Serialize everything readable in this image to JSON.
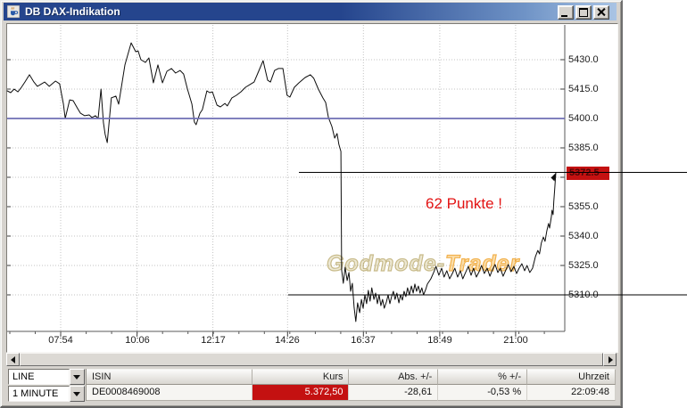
{
  "window": {
    "title": "DB DAX-Indikation",
    "controls": {
      "minimize": "minimize",
      "maximize": "maximize",
      "close": "close"
    }
  },
  "chart": {
    "annotation": "62 Punkte !",
    "watermark": {
      "part1": "Godmode-",
      "part2": "Trader"
    },
    "last_price_box": "5372.5"
  },
  "chart_data": {
    "type": "line",
    "title": "DB DAX-Indikation",
    "xlabel": "Uhrzeit",
    "ylabel": "Kurs",
    "x_ticks": [
      "07:54",
      "10:06",
      "12:17",
      "14:26",
      "16:37",
      "18:49",
      "21:00"
    ],
    "x_ticks_hours": [
      7.9,
      10.1,
      12.283,
      14.433,
      16.617,
      18.817,
      21.0
    ],
    "y_ticks": [
      5430,
      5415,
      5400,
      5385,
      5370,
      5355,
      5340,
      5325,
      5310
    ],
    "y_tick_labels": [
      "5430.0",
      "5415.0",
      "5400.0",
      "5385.0",
      "5370.0",
      "5355.0",
      "5340.0",
      "5325.0",
      "5310.0"
    ],
    "xlim_hours": [
      6.358,
      22.42
    ],
    "ylim": [
      5293,
      5447
    ],
    "grid": true,
    "last_price": 5372.5,
    "session_low": 5296.4,
    "session_high": 5438.6,
    "hlines": [
      {
        "value": 5400.0,
        "color": "#6f6fb4",
        "style": "solid",
        "x_start_hours": 6.358,
        "extend_to": "axis"
      },
      {
        "value": 5372.5,
        "color": "#000000",
        "style": "solid",
        "x_start_hours": 14.76,
        "extend_to": "image_edge"
      },
      {
        "value": 5310.0,
        "color": "#000000",
        "style": "solid",
        "x_start_hours": 14.45,
        "extend_to": "image_edge"
      }
    ],
    "series": [
      {
        "name": "DB DAX-Indikation 1 MINUTE",
        "points": [
          [
            6.36,
            5414.1
          ],
          [
            6.46,
            5413.2
          ],
          [
            6.56,
            5415.0
          ],
          [
            6.67,
            5413.6
          ],
          [
            6.77,
            5415.9
          ],
          [
            6.87,
            5418.6
          ],
          [
            7.0,
            5422.3
          ],
          [
            7.13,
            5418.6
          ],
          [
            7.23,
            5416.4
          ],
          [
            7.44,
            5418.6
          ],
          [
            7.57,
            5416.4
          ],
          [
            7.75,
            5419.1
          ],
          [
            7.87,
            5417.7
          ],
          [
            7.98,
            5407.3
          ],
          [
            8.03,
            5400.0
          ],
          [
            8.16,
            5409.5
          ],
          [
            8.26,
            5409.1
          ],
          [
            8.39,
            5405.0
          ],
          [
            8.47,
            5402.7
          ],
          [
            8.59,
            5401.4
          ],
          [
            8.72,
            5401.8
          ],
          [
            8.8,
            5400.5
          ],
          [
            8.9,
            5401.4
          ],
          [
            8.98,
            5400.0
          ],
          [
            9.06,
            5415.0
          ],
          [
            9.13,
            5398.0
          ],
          [
            9.18,
            5392.0
          ],
          [
            9.24,
            5387.7
          ],
          [
            9.36,
            5410.5
          ],
          [
            9.49,
            5411.4
          ],
          [
            9.57,
            5407.3
          ],
          [
            9.75,
            5427.3
          ],
          [
            9.93,
            5438.6
          ],
          [
            10.06,
            5434.1
          ],
          [
            10.13,
            5434.5
          ],
          [
            10.21,
            5430.0
          ],
          [
            10.34,
            5428.6
          ],
          [
            10.44,
            5430.9
          ],
          [
            10.57,
            5418.2
          ],
          [
            10.7,
            5427.3
          ],
          [
            10.83,
            5418.2
          ],
          [
            10.96,
            5424.1
          ],
          [
            11.09,
            5425.5
          ],
          [
            11.21,
            5423.2
          ],
          [
            11.34,
            5424.5
          ],
          [
            11.44,
            5422.7
          ],
          [
            11.55,
            5415.0
          ],
          [
            11.68,
            5407.3
          ],
          [
            11.75,
            5398.2
          ],
          [
            11.8,
            5396.8
          ],
          [
            11.91,
            5402.7
          ],
          [
            11.98,
            5404.5
          ],
          [
            12.11,
            5414.1
          ],
          [
            12.19,
            5413.2
          ],
          [
            12.27,
            5413.6
          ],
          [
            12.4,
            5406.8
          ],
          [
            12.5,
            5405.9
          ],
          [
            12.63,
            5407.7
          ],
          [
            12.7,
            5406.4
          ],
          [
            12.83,
            5410.5
          ],
          [
            12.96,
            5411.8
          ],
          [
            13.09,
            5413.6
          ],
          [
            13.22,
            5415.9
          ],
          [
            13.35,
            5417.3
          ],
          [
            13.47,
            5418.6
          ],
          [
            13.6,
            5424.1
          ],
          [
            13.73,
            5429.5
          ],
          [
            13.86,
            5419.5
          ],
          [
            13.94,
            5418.6
          ],
          [
            14.06,
            5424.5
          ],
          [
            14.17,
            5425.5
          ],
          [
            14.3,
            5425.5
          ],
          [
            14.42,
            5411.8
          ],
          [
            14.5,
            5410.9
          ],
          [
            14.63,
            5415.9
          ],
          [
            14.76,
            5418.2
          ],
          [
            14.94,
            5420.9
          ],
          [
            15.09,
            5422.3
          ],
          [
            15.19,
            5420.5
          ],
          [
            15.32,
            5415.0
          ],
          [
            15.45,
            5410.5
          ],
          [
            15.53,
            5408.2
          ],
          [
            15.61,
            5400.5
          ],
          [
            15.71,
            5395.9
          ],
          [
            15.79,
            5390.0
          ],
          [
            15.86,
            5392.3
          ],
          [
            15.91,
            5386.8
          ],
          [
            15.97,
            5383.2
          ],
          [
            15.99,
            5322.7
          ],
          [
            16.04,
            5315.9
          ],
          [
            16.09,
            5324.1
          ],
          [
            16.15,
            5317.3
          ],
          [
            16.2,
            5321.4
          ],
          [
            16.25,
            5311.8
          ],
          [
            16.3,
            5315.9
          ],
          [
            16.35,
            5303.6
          ],
          [
            16.4,
            5296.4
          ],
          [
            16.45,
            5305.9
          ],
          [
            16.51,
            5300.9
          ],
          [
            16.56,
            5307.7
          ],
          [
            16.61,
            5303.2
          ],
          [
            16.66,
            5310.0
          ],
          [
            16.71,
            5305.5
          ],
          [
            16.76,
            5312.3
          ],
          [
            16.81,
            5306.8
          ],
          [
            16.86,
            5313.6
          ],
          [
            16.92,
            5307.7
          ],
          [
            16.97,
            5310.9
          ],
          [
            17.02,
            5305.5
          ],
          [
            17.07,
            5310.0
          ],
          [
            17.12,
            5304.5
          ],
          [
            17.17,
            5307.7
          ],
          [
            17.22,
            5303.2
          ],
          [
            17.28,
            5306.4
          ],
          [
            17.33,
            5310.0
          ],
          [
            17.38,
            5305.5
          ],
          [
            17.43,
            5309.1
          ],
          [
            17.48,
            5311.8
          ],
          [
            17.53,
            5307.7
          ],
          [
            17.58,
            5310.9
          ],
          [
            17.64,
            5305.9
          ],
          [
            17.69,
            5310.0
          ],
          [
            17.74,
            5307.3
          ],
          [
            17.79,
            5311.8
          ],
          [
            17.84,
            5309.1
          ],
          [
            17.89,
            5313.6
          ],
          [
            17.94,
            5310.0
          ],
          [
            18.0,
            5314.5
          ],
          [
            18.05,
            5310.9
          ],
          [
            18.1,
            5315.5
          ],
          [
            18.15,
            5311.8
          ],
          [
            18.2,
            5314.5
          ],
          [
            18.25,
            5310.9
          ],
          [
            18.3,
            5313.6
          ],
          [
            18.35,
            5310.0
          ],
          [
            18.41,
            5312.7
          ],
          [
            18.46,
            5315.5
          ],
          [
            18.56,
            5318.2
          ],
          [
            18.64,
            5321.4
          ],
          [
            18.71,
            5324.5
          ],
          [
            18.79,
            5320.0
          ],
          [
            18.87,
            5323.6
          ],
          [
            18.94,
            5319.1
          ],
          [
            19.02,
            5322.3
          ],
          [
            19.1,
            5318.2
          ],
          [
            19.18,
            5320.9
          ],
          [
            19.25,
            5323.6
          ],
          [
            19.33,
            5319.1
          ],
          [
            19.41,
            5322.3
          ],
          [
            19.48,
            5318.2
          ],
          [
            19.56,
            5321.4
          ],
          [
            19.64,
            5324.5
          ],
          [
            19.72,
            5320.0
          ],
          [
            19.79,
            5323.6
          ],
          [
            19.87,
            5319.1
          ],
          [
            19.95,
            5321.8
          ],
          [
            20.02,
            5325.0
          ],
          [
            20.1,
            5320.9
          ],
          [
            20.18,
            5323.6
          ],
          [
            20.26,
            5319.5
          ],
          [
            20.33,
            5322.7
          ],
          [
            20.41,
            5325.5
          ],
          [
            20.49,
            5321.4
          ],
          [
            20.56,
            5323.6
          ],
          [
            20.64,
            5319.5
          ],
          [
            20.72,
            5322.7
          ],
          [
            20.79,
            5325.5
          ],
          [
            20.87,
            5321.8
          ],
          [
            20.95,
            5324.5
          ],
          [
            21.03,
            5320.9
          ],
          [
            21.1,
            5323.6
          ],
          [
            21.18,
            5325.9
          ],
          [
            21.26,
            5322.3
          ],
          [
            21.33,
            5325.0
          ],
          [
            21.41,
            5321.4
          ],
          [
            21.49,
            5323.6
          ],
          [
            21.57,
            5329.5
          ],
          [
            21.64,
            5332.7
          ],
          [
            21.69,
            5330.9
          ],
          [
            21.74,
            5336.4
          ],
          [
            21.8,
            5339.5
          ],
          [
            21.85,
            5337.3
          ],
          [
            21.9,
            5342.7
          ],
          [
            21.95,
            5346.4
          ],
          [
            21.98,
            5344.1
          ],
          [
            22.03,
            5350.0
          ],
          [
            22.05,
            5353.2
          ],
          [
            22.08,
            5350.9
          ],
          [
            22.1,
            5357.7
          ],
          [
            22.13,
            5364.5
          ],
          [
            22.16,
            5372.5
          ]
        ]
      }
    ]
  },
  "toolbar": {
    "chart_type": "LINE",
    "interval": "1 MINUTE"
  },
  "table": {
    "headers": [
      "ISIN",
      "Kurs",
      "Abs. +/-",
      "% +/-",
      "Uhrzeit"
    ],
    "row": {
      "isin": "DE0008469008",
      "kurs": "5.372,50",
      "abs": "-28,61",
      "pct": "-0,53 %",
      "time": "22:09:48"
    }
  },
  "colors": {
    "titlebar_blue": "#25458d",
    "price_line": "#0d0d0d",
    "blue_level_line": "#6f6fb4",
    "negative_red": "#c41111",
    "annotation_red": "#e31414",
    "watermark_khaki": "#c3b26e",
    "watermark_orange": "#f4a71c",
    "panel_gray": "#d6d3ce"
  }
}
